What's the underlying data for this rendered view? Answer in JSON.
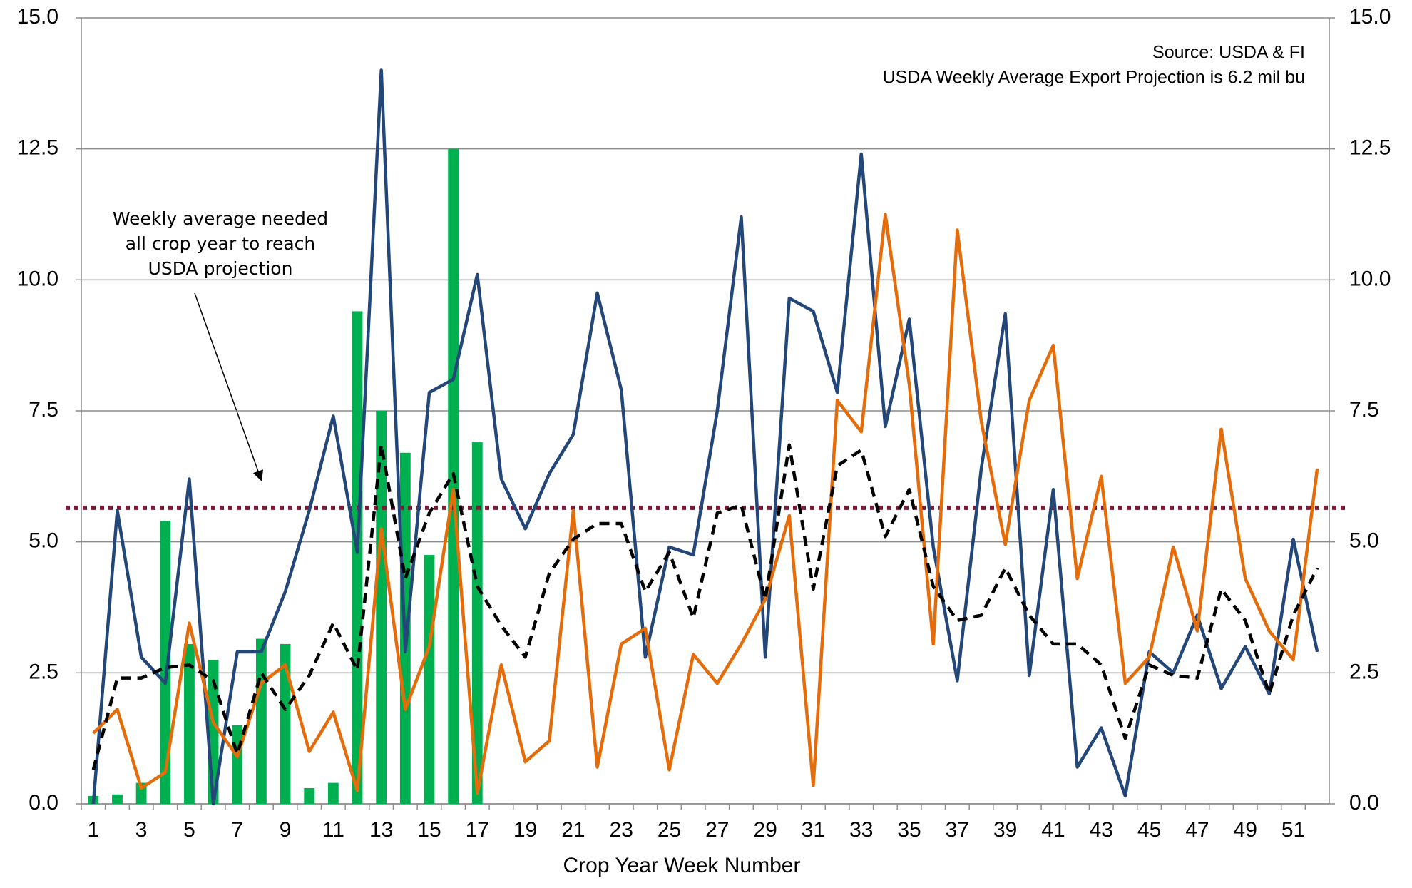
{
  "chart_data": {
    "type": "combo",
    "source": "Source: USDA & FI",
    "subtitle": "USDA Weekly Average Export Projection is 6.2 mil bu",
    "annotation": [
      "Weekly average needed",
      "all crop year to reach",
      "USDA projection"
    ],
    "x_label": "Crop Year Week Number",
    "categories": [
      1,
      null,
      3,
      null,
      5,
      null,
      7,
      null,
      9,
      null,
      11,
      null,
      13,
      null,
      15,
      null,
      17,
      null,
      19,
      null,
      21,
      null,
      23,
      null,
      25,
      null,
      27,
      null,
      29,
      null,
      31,
      null,
      33,
      null,
      35,
      null,
      37,
      null,
      39,
      null,
      41,
      null,
      43,
      null,
      45,
      null,
      47,
      null,
      49,
      null,
      51,
      null
    ],
    "ylim": [
      0,
      15
    ],
    "yticks": [
      {
        "value": 0,
        "label": "0.0"
      },
      2.5,
      {
        "value": 5,
        "label": "5.0"
      },
      7.5,
      {
        "value": 10,
        "label": "10.0"
      },
      12.5,
      {
        "value": 15,
        "label": "15.0"
      }
    ],
    "y2lim": [
      0,
      15
    ],
    "y2ticks": [
      {
        "value": 0,
        "label": "0.0"
      },
      2.5,
      {
        "value": 5,
        "label": "5.0"
      },
      7.5,
      {
        "value": 10,
        "label": "10.0"
      },
      12.5,
      {
        "value": 15,
        "label": "15.0"
      }
    ],
    "grid": true,
    "reference_line": {
      "value": 5.65,
      "color": "#7b1c36"
    },
    "series": [
      {
        "type": "bar",
        "color": "#00b050",
        "values": [
          0.15,
          0.18,
          0.4,
          5.4,
          3.05,
          2.75,
          1.5,
          3.15,
          3.05,
          0.3,
          0.4,
          9.4,
          7.5,
          6.7,
          4.75,
          12.5,
          6.9,
          null,
          null,
          null,
          null,
          null,
          null,
          null,
          null,
          null,
          null,
          null,
          null,
          null,
          null,
          null,
          null,
          null,
          null,
          null,
          null,
          null,
          null,
          null,
          null,
          null,
          null,
          null,
          null,
          null,
          null,
          null,
          null,
          null,
          null,
          null
        ]
      },
      {
        "type": "line",
        "color": "#24477a",
        "values": [
          0.0,
          5.6,
          2.8,
          2.3,
          6.2,
          0.0,
          2.9,
          2.9,
          4.05,
          5.6,
          7.4,
          4.8,
          14.0,
          2.9,
          7.85,
          8.1,
          10.1,
          6.2,
          5.25,
          6.3,
          7.05,
          9.75,
          7.9,
          2.8,
          4.9,
          4.75,
          7.5,
          11.2,
          2.8,
          9.65,
          9.4,
          7.85,
          12.4,
          7.2,
          9.25,
          4.9,
          2.35,
          6.4,
          9.35,
          2.45,
          6.0,
          0.7,
          1.45,
          0.15,
          2.9,
          2.5,
          3.6,
          2.2,
          3.0,
          2.1,
          5.05,
          2.9
        ]
      },
      {
        "type": "line",
        "color": "#e46c0a",
        "values": [
          1.35,
          1.8,
          0.3,
          0.6,
          3.45,
          1.55,
          0.9,
          2.3,
          2.65,
          1.0,
          1.75,
          0.25,
          5.25,
          1.8,
          3.0,
          6.0,
          0.2,
          2.65,
          0.8,
          1.2,
          5.6,
          0.7,
          3.05,
          3.35,
          0.65,
          2.85,
          2.3,
          3.05,
          3.9,
          5.5,
          0.35,
          7.7,
          7.1,
          11.25,
          8.0,
          3.05,
          10.95,
          7.3,
          4.95,
          7.7,
          8.75,
          4.3,
          6.25,
          2.3,
          2.8,
          4.9,
          3.3,
          7.15,
          4.3,
          3.3,
          2.75,
          6.4
        ]
      },
      {
        "type": "line",
        "color": "#000000",
        "dashed": true,
        "values": [
          0.65,
          2.4,
          2.4,
          2.6,
          2.65,
          2.35,
          0.95,
          2.5,
          1.8,
          2.45,
          3.45,
          2.55,
          6.85,
          4.3,
          5.55,
          6.3,
          4.15,
          3.4,
          2.8,
          4.4,
          5.05,
          5.35,
          5.35,
          4.05,
          4.8,
          3.55,
          5.55,
          5.7,
          3.9,
          6.85,
          4.1,
          6.45,
          6.75,
          5.1,
          6.0,
          4.15,
          3.5,
          3.6,
          4.5,
          3.6,
          3.05,
          3.05,
          2.65,
          1.25,
          2.65,
          2.45,
          2.4,
          4.1,
          3.5,
          2.1,
          3.6,
          4.5
        ]
      }
    ]
  }
}
